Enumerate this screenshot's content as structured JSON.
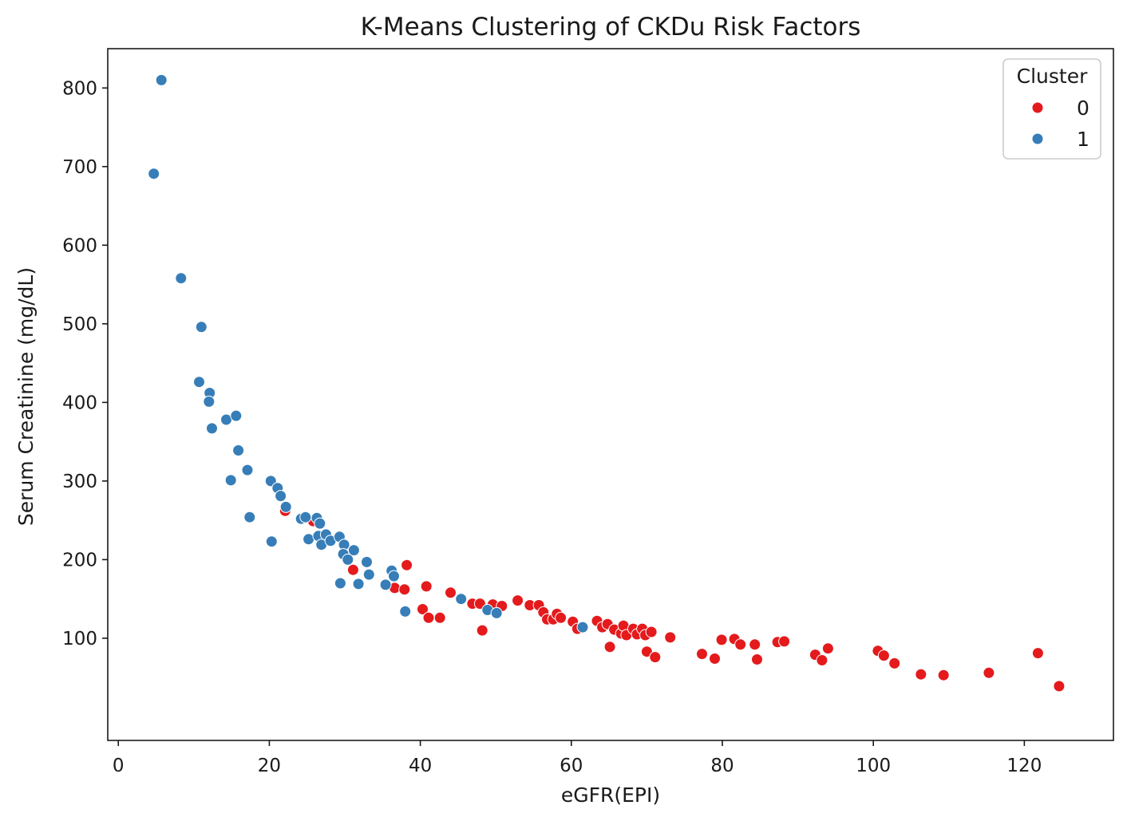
{
  "chart_data": {
    "type": "scatter",
    "title": "K-Means Clustering of CKDu Risk Factors",
    "xlabel": "eGFR(EPI)",
    "ylabel": "Serum Creatinine (mg/dL)",
    "xlim": [
      -1.4,
      131.8
    ],
    "ylim": [
      -30,
      850
    ],
    "xticks": [
      0,
      20,
      40,
      60,
      80,
      100,
      120
    ],
    "yticks": [
      100,
      200,
      300,
      400,
      500,
      600,
      700,
      800
    ],
    "grid": false,
    "legend": {
      "title": "Cluster",
      "placement": "top-right",
      "entries": [
        "0",
        "1"
      ]
    },
    "colors": {
      "0": "#e41a1c",
      "1": "#377eb8"
    },
    "series": [
      {
        "name": "0",
        "color": "#e41a1c",
        "points": [
          [
            22.1,
            262
          ],
          [
            25.8,
            249
          ],
          [
            31.1,
            187
          ],
          [
            36.6,
            164
          ],
          [
            37.9,
            162
          ],
          [
            38.2,
            193
          ],
          [
            40.3,
            137
          ],
          [
            40.8,
            166
          ],
          [
            41.1,
            126
          ],
          [
            42.6,
            126
          ],
          [
            44.0,
            158
          ],
          [
            46.9,
            144
          ],
          [
            47.9,
            144
          ],
          [
            48.2,
            110
          ],
          [
            49.6,
            143
          ],
          [
            50.8,
            141
          ],
          [
            52.9,
            148
          ],
          [
            54.5,
            142
          ],
          [
            55.7,
            142
          ],
          [
            56.3,
            133
          ],
          [
            56.8,
            124
          ],
          [
            57.6,
            124
          ],
          [
            58.1,
            131
          ],
          [
            58.6,
            126
          ],
          [
            60.2,
            121
          ],
          [
            60.8,
            112
          ],
          [
            63.4,
            122
          ],
          [
            64.1,
            114
          ],
          [
            64.8,
            118
          ],
          [
            65.1,
            89
          ],
          [
            65.7,
            111
          ],
          [
            66.6,
            106
          ],
          [
            66.9,
            116
          ],
          [
            67.3,
            104
          ],
          [
            68.2,
            112
          ],
          [
            68.7,
            105
          ],
          [
            69.4,
            112
          ],
          [
            69.8,
            104
          ],
          [
            70.0,
            83
          ],
          [
            70.6,
            108
          ],
          [
            71.1,
            76
          ],
          [
            73.1,
            101
          ],
          [
            77.3,
            80
          ],
          [
            79.0,
            74
          ],
          [
            79.9,
            98
          ],
          [
            81.6,
            99
          ],
          [
            82.4,
            92
          ],
          [
            84.3,
            92
          ],
          [
            84.6,
            73
          ],
          [
            87.3,
            95
          ],
          [
            88.2,
            96
          ],
          [
            92.3,
            79
          ],
          [
            93.2,
            72
          ],
          [
            94.0,
            87
          ],
          [
            100.6,
            84
          ],
          [
            101.4,
            78
          ],
          [
            102.8,
            68
          ],
          [
            106.3,
            54
          ],
          [
            109.3,
            53
          ],
          [
            115.3,
            56
          ],
          [
            121.8,
            81
          ],
          [
            124.6,
            39
          ]
        ]
      },
      {
        "name": "1",
        "color": "#377eb8",
        "points": [
          [
            5.7,
            810
          ],
          [
            4.7,
            691
          ],
          [
            8.3,
            558
          ],
          [
            11.0,
            496
          ],
          [
            10.7,
            426
          ],
          [
            12.1,
            412
          ],
          [
            12.0,
            401
          ],
          [
            12.4,
            367
          ],
          [
            14.3,
            378
          ],
          [
            15.6,
            383
          ],
          [
            15.9,
            339
          ],
          [
            17.1,
            314
          ],
          [
            14.9,
            301
          ],
          [
            17.4,
            254
          ],
          [
            20.2,
            300
          ],
          [
            21.1,
            291
          ],
          [
            21.5,
            281
          ],
          [
            22.2,
            267
          ],
          [
            20.3,
            223
          ],
          [
            24.2,
            252
          ],
          [
            24.8,
            254
          ],
          [
            25.2,
            226
          ],
          [
            26.3,
            253
          ],
          [
            26.7,
            246
          ],
          [
            26.5,
            230
          ],
          [
            26.9,
            219
          ],
          [
            27.5,
            232
          ],
          [
            28.1,
            224
          ],
          [
            29.3,
            229
          ],
          [
            29.9,
            219
          ],
          [
            29.8,
            207
          ],
          [
            30.4,
            200
          ],
          [
            31.2,
            212
          ],
          [
            32.9,
            197
          ],
          [
            33.2,
            181
          ],
          [
            31.8,
            169
          ],
          [
            29.4,
            170
          ],
          [
            35.4,
            168
          ],
          [
            36.2,
            186
          ],
          [
            36.5,
            179
          ],
          [
            38.0,
            134
          ],
          [
            45.4,
            150
          ],
          [
            48.9,
            136
          ],
          [
            50.1,
            132
          ],
          [
            61.5,
            114
          ]
        ]
      }
    ]
  }
}
